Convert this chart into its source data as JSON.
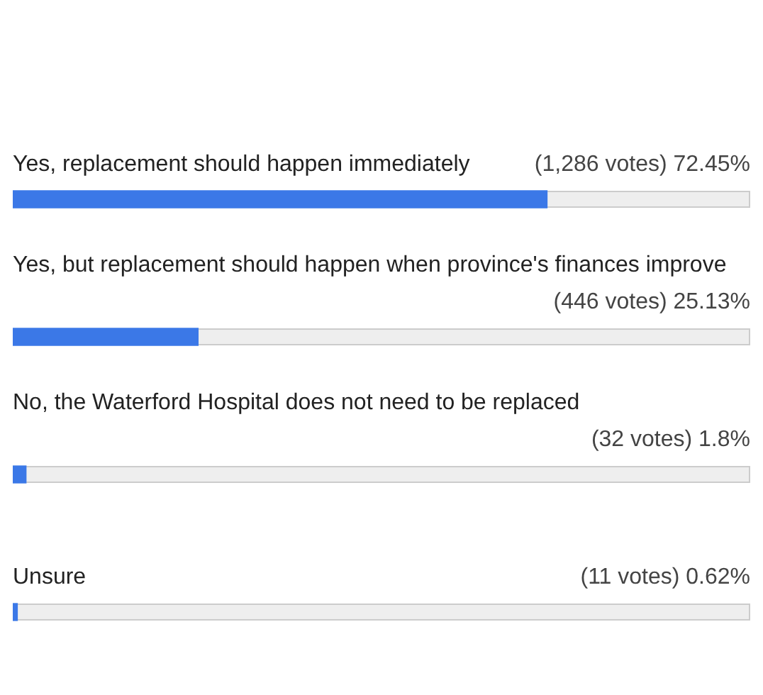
{
  "chart_data": {
    "type": "bar",
    "orientation": "horizontal",
    "categories": [
      "Yes, replacement should happen immediately",
      "Yes, but replacement should happen when province's finances improve",
      "No, the Waterford Hospital does not need to be replaced",
      "Unsure"
    ],
    "values": [
      72.45,
      25.13,
      1.8,
      0.62
    ],
    "value_labels": [
      "(1,286 votes) 72.45%",
      "(446 votes) 25.13%",
      "(32 votes) 1.8%",
      "(11 votes) 0.62%"
    ],
    "color": "#3b78e7",
    "xlim": [
      0,
      100
    ],
    "tick_labels": false,
    "legend": false
  }
}
